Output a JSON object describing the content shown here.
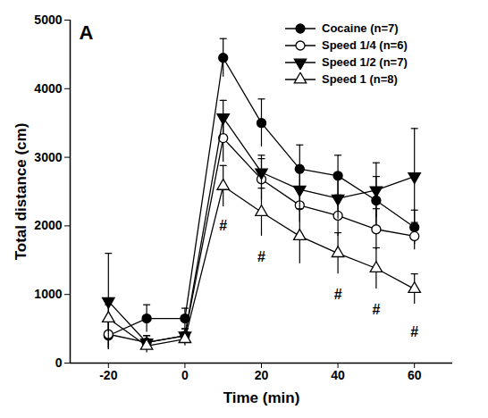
{
  "chart_data": {
    "type": "line",
    "title": "A",
    "x_label": "Time (min)",
    "y_label": "Total distance (cm)",
    "x": [
      -20,
      -10,
      0,
      10,
      20,
      30,
      40,
      50,
      60
    ],
    "xlim": [
      -30,
      70
    ],
    "xticks": [
      -20,
      0,
      20,
      40,
      60
    ],
    "ylim": [
      0,
      5000
    ],
    "yticks": [
      0,
      1000,
      2000,
      3000,
      4000,
      5000
    ],
    "grid": false,
    "legend": "top-right",
    "series": [
      {
        "name": "Cocaine (n=7)",
        "color": "#000000",
        "marker": "circle",
        "line_style": "solid",
        "values": [
          400,
          650,
          650,
          4450,
          3500,
          2830,
          2730,
          2370,
          1980
        ],
        "errors": [
          200,
          200,
          150,
          280,
          350,
          350,
          300,
          350,
          250
        ]
      },
      {
        "name": "Speed 1/4 (n=6)",
        "color": "#000000",
        "marker": "circle-open",
        "line_style": "solid",
        "values": [
          420,
          300,
          400,
          3280,
          2680,
          2300,
          2150,
          1950,
          1850
        ],
        "errors": [
          200,
          100,
          100,
          350,
          300,
          250,
          300,
          300,
          200
        ]
      },
      {
        "name": "Speed 1/2 (n=7)",
        "color": "#000000",
        "marker": "triangle-down",
        "line_style": "solid",
        "values": [
          900,
          300,
          400,
          3580,
          2780,
          2530,
          2400,
          2520,
          2720
        ],
        "errors": [
          700,
          100,
          100,
          250,
          250,
          300,
          300,
          400,
          700
        ]
      },
      {
        "name": "Speed 1 (n=8)",
        "color": "#000000",
        "marker": "triangle-open",
        "line_style": "solid",
        "values": [
          650,
          250,
          350,
          2580,
          2200,
          1850,
          1600,
          1380,
          1080
        ],
        "errors": [
          200,
          100,
          100,
          300,
          350,
          400,
          300,
          300,
          220
        ]
      }
    ],
    "annotations": [
      {
        "text": "#",
        "x": 10,
        "y": 2000
      },
      {
        "text": "#",
        "x": 20,
        "y": 1550
      },
      {
        "text": "#",
        "x": 40,
        "y": 1000
      },
      {
        "text": "#",
        "x": 50,
        "y": 780
      },
      {
        "text": "#",
        "x": 60,
        "y": 450
      }
    ]
  }
}
